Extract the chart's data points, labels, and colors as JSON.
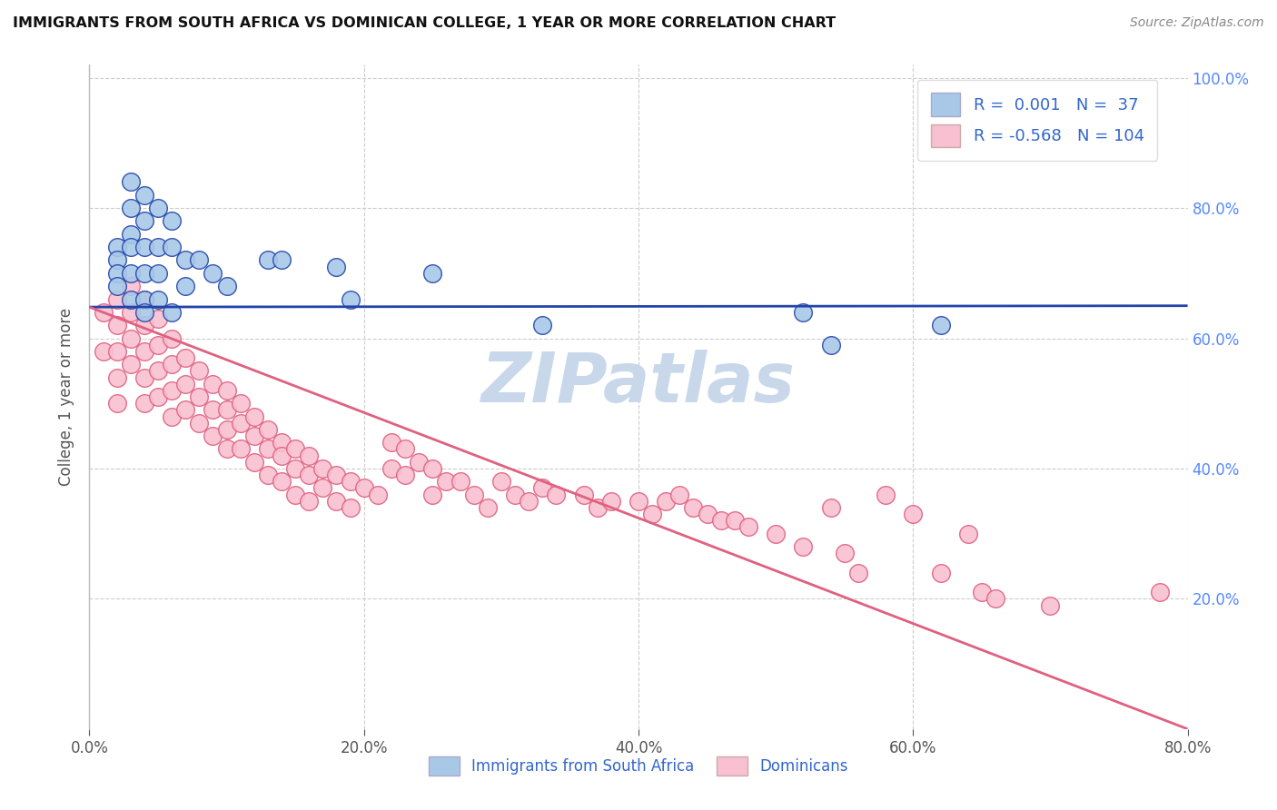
{
  "title": "IMMIGRANTS FROM SOUTH AFRICA VS DOMINICAN COLLEGE, 1 YEAR OR MORE CORRELATION CHART",
  "source_text": "Source: ZipAtlas.com",
  "ylabel": "College, 1 year or more",
  "legend_label_blue": "Immigrants from South Africa",
  "legend_label_pink": "Dominicans",
  "R_blue": 0.001,
  "N_blue": 37,
  "R_pink": -0.568,
  "N_pink": 104,
  "xlim": [
    0.0,
    0.8
  ],
  "ylim": [
    0.0,
    1.02
  ],
  "xtick_vals": [
    0.0,
    0.2,
    0.4,
    0.6,
    0.8
  ],
  "xtick_labels": [
    "0.0%",
    "20.0%",
    "40.0%",
    "60.0%",
    "80.0%"
  ],
  "ytick_vals": [
    0.2,
    0.4,
    0.6,
    0.8,
    1.0
  ],
  "ytick_labels_right": [
    "20.0%",
    "40.0%",
    "60.0%",
    "80.0%",
    "100.0%"
  ],
  "color_blue": "#A8C8E8",
  "color_pink": "#F8C0D0",
  "line_color_blue": "#2244AA",
  "line_color_pink": "#E06080",
  "bg_color": "#FFFFFF",
  "blue_trend_y_at_0": 0.648,
  "blue_trend_y_at_80": 0.65,
  "pink_trend_y_at_0": 0.648,
  "pink_trend_y_at_80": 0.0,
  "blue_x": [
    0.02,
    0.02,
    0.02,
    0.02,
    0.03,
    0.03,
    0.03,
    0.03,
    0.03,
    0.03,
    0.04,
    0.04,
    0.04,
    0.04,
    0.04,
    0.04,
    0.05,
    0.05,
    0.05,
    0.05,
    0.06,
    0.06,
    0.06,
    0.07,
    0.07,
    0.08,
    0.09,
    0.1,
    0.13,
    0.14,
    0.18,
    0.19,
    0.25,
    0.33,
    0.52,
    0.54,
    0.62
  ],
  "blue_y": [
    0.74,
    0.72,
    0.7,
    0.68,
    0.84,
    0.8,
    0.76,
    0.74,
    0.7,
    0.66,
    0.82,
    0.78,
    0.74,
    0.7,
    0.66,
    0.64,
    0.8,
    0.74,
    0.7,
    0.66,
    0.78,
    0.74,
    0.64,
    0.72,
    0.68,
    0.72,
    0.7,
    0.68,
    0.72,
    0.72,
    0.71,
    0.66,
    0.7,
    0.62,
    0.64,
    0.59,
    0.62
  ],
  "pink_x": [
    0.01,
    0.01,
    0.02,
    0.02,
    0.02,
    0.02,
    0.02,
    0.03,
    0.03,
    0.03,
    0.03,
    0.04,
    0.04,
    0.04,
    0.04,
    0.04,
    0.05,
    0.05,
    0.05,
    0.05,
    0.06,
    0.06,
    0.06,
    0.06,
    0.07,
    0.07,
    0.07,
    0.08,
    0.08,
    0.08,
    0.09,
    0.09,
    0.09,
    0.1,
    0.1,
    0.1,
    0.1,
    0.11,
    0.11,
    0.11,
    0.12,
    0.12,
    0.12,
    0.13,
    0.13,
    0.13,
    0.14,
    0.14,
    0.14,
    0.15,
    0.15,
    0.15,
    0.16,
    0.16,
    0.16,
    0.17,
    0.17,
    0.18,
    0.18,
    0.19,
    0.19,
    0.2,
    0.21,
    0.22,
    0.22,
    0.23,
    0.23,
    0.24,
    0.25,
    0.25,
    0.26,
    0.27,
    0.28,
    0.29,
    0.3,
    0.31,
    0.32,
    0.33,
    0.34,
    0.36,
    0.37,
    0.38,
    0.4,
    0.41,
    0.42,
    0.43,
    0.44,
    0.45,
    0.46,
    0.47,
    0.48,
    0.5,
    0.52,
    0.54,
    0.55,
    0.56,
    0.58,
    0.6,
    0.62,
    0.64,
    0.65,
    0.66,
    0.7,
    0.78
  ],
  "pink_y": [
    0.64,
    0.58,
    0.66,
    0.62,
    0.58,
    0.54,
    0.5,
    0.68,
    0.64,
    0.6,
    0.56,
    0.66,
    0.62,
    0.58,
    0.54,
    0.5,
    0.63,
    0.59,
    0.55,
    0.51,
    0.6,
    0.56,
    0.52,
    0.48,
    0.57,
    0.53,
    0.49,
    0.55,
    0.51,
    0.47,
    0.53,
    0.49,
    0.45,
    0.52,
    0.49,
    0.46,
    0.43,
    0.5,
    0.47,
    0.43,
    0.48,
    0.45,
    0.41,
    0.46,
    0.43,
    0.39,
    0.44,
    0.42,
    0.38,
    0.43,
    0.4,
    0.36,
    0.42,
    0.39,
    0.35,
    0.4,
    0.37,
    0.39,
    0.35,
    0.38,
    0.34,
    0.37,
    0.36,
    0.44,
    0.4,
    0.43,
    0.39,
    0.41,
    0.4,
    0.36,
    0.38,
    0.38,
    0.36,
    0.34,
    0.38,
    0.36,
    0.35,
    0.37,
    0.36,
    0.36,
    0.34,
    0.35,
    0.35,
    0.33,
    0.35,
    0.36,
    0.34,
    0.33,
    0.32,
    0.32,
    0.31,
    0.3,
    0.28,
    0.34,
    0.27,
    0.24,
    0.36,
    0.33,
    0.24,
    0.3,
    0.21,
    0.2,
    0.19,
    0.21
  ],
  "watermark_text": "ZIPatlas",
  "watermark_color": "#C8D8EA",
  "watermark_fontsize": 55
}
